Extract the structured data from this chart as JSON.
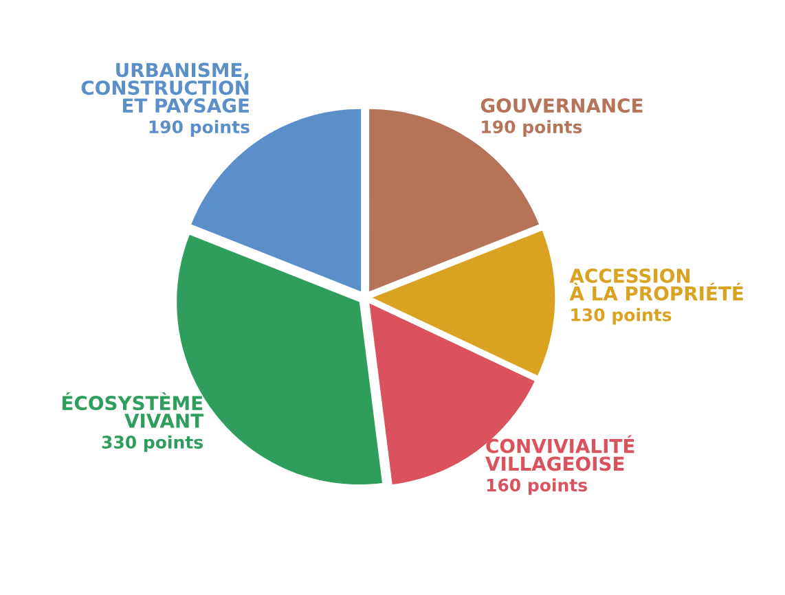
{
  "chart_data": {
    "type": "pie",
    "categories": [
      "GOUVERNANCE",
      "ACCESSION\nÀ LA PROPRIÉTÉ",
      "CONVIVIALITÉ\nVILLAGEOISE",
      "ÉCOSYSTÈME\nVIVANT",
      "URBANISME,\nCONSTRUCTION\nET PAYSAGE"
    ],
    "values": [
      190,
      130,
      160,
      330,
      190
    ],
    "value_labels": [
      "190 points",
      "130 points",
      "160 points",
      "330 points",
      "190 points"
    ],
    "colors": [
      "#b5745a",
      "#d9a321",
      "#d9525e",
      "#2f9d5c",
      "#5b8fca"
    ]
  }
}
